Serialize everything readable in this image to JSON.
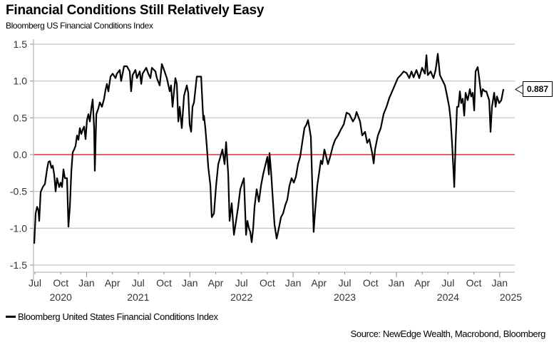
{
  "title": "Financial Conditions Still Relatively Easy",
  "subtitle": "Bloomberg US Financial Conditions Index",
  "legend": {
    "label": "Bloomberg United States Financial Conditions Index"
  },
  "source": "Source: NewEdge Wealth, Macrobond, Bloomberg",
  "last_value_label": "0.887",
  "colors": {
    "line": "#000000",
    "zero_line": "#e03030",
    "grid": "#c8c8c8",
    "axis": "#bbbbbb"
  },
  "chart_data": {
    "type": "line",
    "title": "Financial Conditions Still Relatively Easy",
    "subtitle": "Bloomberg US Financial Conditions Index",
    "xlabel": "",
    "ylabel": "",
    "ylim": [
      -1.6,
      1.55
    ],
    "yticks": [
      1.5,
      1.0,
      0.5,
      0.0,
      -0.5,
      -1.0,
      -1.5
    ],
    "ytick_labels": [
      "1.5",
      "1.0",
      "0.5",
      "0.0",
      "-0.5",
      "-1.0",
      "-1.5"
    ],
    "x_unit": "months since Jul 2020",
    "xlim": [
      0,
      55.5
    ],
    "xticks": [
      {
        "m": 0,
        "label": "Jul"
      },
      {
        "m": 3,
        "label": "Oct"
      },
      {
        "m": 6,
        "label": "Jan"
      },
      {
        "m": 9,
        "label": "Apr"
      },
      {
        "m": 12,
        "label": "Jul"
      },
      {
        "m": 15,
        "label": "Oct"
      },
      {
        "m": 18,
        "label": "Jan"
      },
      {
        "m": 21,
        "label": "Apr"
      },
      {
        "m": 24,
        "label": "Jul"
      },
      {
        "m": 27,
        "label": "Oct"
      },
      {
        "m": 30,
        "label": "Jan"
      },
      {
        "m": 33,
        "label": "Apr"
      },
      {
        "m": 36,
        "label": "Jul"
      },
      {
        "m": 39,
        "label": "Oct"
      },
      {
        "m": 42,
        "label": "Jan"
      },
      {
        "m": 45,
        "label": "Apr"
      },
      {
        "m": 48,
        "label": "Jul"
      },
      {
        "m": 51,
        "label": "Oct"
      },
      {
        "m": 54,
        "label": "Jan"
      }
    ],
    "year_labels": [
      {
        "m": 3,
        "label": "2020"
      },
      {
        "m": 12,
        "label": "2021"
      },
      {
        "m": 24,
        "label": "2022"
      },
      {
        "m": 36,
        "label": "2023"
      },
      {
        "m": 48,
        "label": "2024"
      },
      {
        "m": 55.3,
        "label": "2025"
      }
    ],
    "reference_line": {
      "y": 0.0,
      "label": "zero"
    },
    "grid": true,
    "legend_position": "bottom-left",
    "series": [
      {
        "name": "Bloomberg United States Financial Conditions Index",
        "last_value": 0.887,
        "points": [
          [
            -0.08,
            -1.21
          ],
          [
            0.08,
            -0.8
          ],
          [
            0.25,
            -0.71
          ],
          [
            0.41,
            -0.76
          ],
          [
            0.5,
            -0.9
          ],
          [
            0.66,
            -0.51
          ],
          [
            0.91,
            -0.44
          ],
          [
            1.16,
            -0.4
          ],
          [
            1.41,
            -0.2
          ],
          [
            1.57,
            -0.1
          ],
          [
            1.74,
            -0.09
          ],
          [
            1.91,
            -0.18
          ],
          [
            2.07,
            -0.15
          ],
          [
            2.24,
            -0.27
          ],
          [
            2.4,
            -0.5
          ],
          [
            2.57,
            -0.32
          ],
          [
            2.82,
            -0.44
          ],
          [
            2.98,
            -0.38
          ],
          [
            3.15,
            -0.44
          ],
          [
            3.31,
            -0.2
          ],
          [
            3.48,
            -0.32
          ],
          [
            3.73,
            -0.32
          ],
          [
            3.89,
            -0.98
          ],
          [
            4.06,
            -0.71
          ],
          [
            4.23,
            -0.22
          ],
          [
            4.39,
            0.03
          ],
          [
            4.56,
            0.07
          ],
          [
            4.72,
            0.12
          ],
          [
            4.89,
            0.26
          ],
          [
            5.05,
            0.2
          ],
          [
            5.22,
            0.36
          ],
          [
            5.39,
            0.28
          ],
          [
            5.55,
            0.34
          ],
          [
            5.72,
            0.38
          ],
          [
            5.88,
            0.21
          ],
          [
            6.05,
            0.47
          ],
          [
            6.21,
            0.55
          ],
          [
            6.38,
            0.45
          ],
          [
            6.55,
            0.63
          ],
          [
            6.71,
            0.75
          ],
          [
            6.88,
            0.36
          ],
          [
            6.96,
            -0.22
          ],
          [
            7.13,
            0.55
          ],
          [
            7.37,
            0.63
          ],
          [
            7.54,
            0.71
          ],
          [
            7.79,
            0.65
          ],
          [
            8.04,
            0.76
          ],
          [
            8.2,
            0.88
          ],
          [
            8.37,
            0.96
          ],
          [
            8.53,
            0.86
          ],
          [
            8.78,
            1.06
          ],
          [
            9.03,
            1.1
          ],
          [
            9.36,
            1.04
          ],
          [
            9.53,
            1.1
          ],
          [
            9.86,
            1.15
          ],
          [
            10.02,
            1.0
          ],
          [
            10.36,
            1.2
          ],
          [
            10.69,
            1.2
          ],
          [
            11.02,
            1.13
          ],
          [
            11.18,
            0.86
          ],
          [
            11.35,
            1.08
          ],
          [
            11.68,
            1.15
          ],
          [
            11.85,
            1.04
          ],
          [
            12.18,
            1.13
          ],
          [
            12.35,
            0.96
          ],
          [
            12.51,
            1.1
          ],
          [
            12.93,
            1.18
          ],
          [
            13.17,
            1.1
          ],
          [
            13.42,
            1.04
          ],
          [
            13.59,
            1.18
          ],
          [
            14.0,
            1.13
          ],
          [
            14.17,
            1.04
          ],
          [
            14.5,
            0.94
          ],
          [
            14.75,
            1.23
          ],
          [
            15.0,
            1.15
          ],
          [
            15.33,
            1.04
          ],
          [
            15.66,
            0.86
          ],
          [
            15.82,
            0.94
          ],
          [
            15.99,
            0.65
          ],
          [
            16.16,
            0.86
          ],
          [
            16.32,
            1.04
          ],
          [
            16.49,
            0.96
          ],
          [
            16.66,
            0.45
          ],
          [
            16.82,
            0.65
          ],
          [
            17.07,
            0.36
          ],
          [
            17.32,
            0.8
          ],
          [
            17.65,
            0.94
          ],
          [
            17.81,
            0.84
          ],
          [
            17.98,
            0.41
          ],
          [
            18.15,
            0.31
          ],
          [
            18.31,
            0.65
          ],
          [
            18.48,
            0.71
          ],
          [
            18.81,
            1.06
          ],
          [
            19.31,
            1.06
          ],
          [
            19.56,
            0.47
          ],
          [
            19.64,
            0.53
          ],
          [
            19.8,
            0.36
          ],
          [
            19.97,
            0.12
          ],
          [
            20.14,
            -0.17
          ],
          [
            20.39,
            -0.42
          ],
          [
            20.55,
            -0.85
          ],
          [
            20.8,
            -0.8
          ],
          [
            21.05,
            -0.42
          ],
          [
            21.3,
            -0.13
          ],
          [
            21.55,
            -0.03
          ],
          [
            21.79,
            0.07
          ],
          [
            22.04,
            -0.13
          ],
          [
            22.21,
            0.17
          ],
          [
            22.46,
            -0.27
          ],
          [
            22.62,
            -0.9
          ],
          [
            22.87,
            -0.66
          ],
          [
            23.12,
            -1.09
          ],
          [
            23.37,
            -0.9
          ],
          [
            23.61,
            -0.71
          ],
          [
            23.86,
            -0.47
          ],
          [
            24.11,
            -0.38
          ],
          [
            24.28,
            -0.32
          ],
          [
            24.53,
            -1.09
          ],
          [
            24.69,
            -0.9
          ],
          [
            24.86,
            -1.0
          ],
          [
            25.02,
            -1.05
          ],
          [
            25.19,
            -1.19
          ],
          [
            25.36,
            -1.0
          ],
          [
            25.52,
            -0.71
          ],
          [
            25.77,
            -0.47
          ],
          [
            26.02,
            -0.64
          ],
          [
            26.27,
            -0.42
          ],
          [
            26.51,
            -0.27
          ],
          [
            26.76,
            -0.15
          ],
          [
            27.01,
            -0.03
          ],
          [
            27.18,
            -0.27
          ],
          [
            27.26,
            0.02
          ],
          [
            27.43,
            -0.22
          ],
          [
            27.59,
            -0.51
          ],
          [
            27.84,
            -0.95
          ],
          [
            28.09,
            -1.14
          ],
          [
            28.34,
            -1.0
          ],
          [
            28.59,
            -0.85
          ],
          [
            28.83,
            -0.8
          ],
          [
            29.08,
            -0.69
          ],
          [
            29.33,
            -0.61
          ],
          [
            29.58,
            -0.42
          ],
          [
            29.83,
            -0.32
          ],
          [
            30.08,
            -0.38
          ],
          [
            30.32,
            -0.3
          ],
          [
            30.57,
            -0.13
          ],
          [
            30.82,
            -0.03
          ],
          [
            31.07,
            0.17
          ],
          [
            31.32,
            0.36
          ],
          [
            31.56,
            0.41
          ],
          [
            31.73,
            0.47
          ],
          [
            31.9,
            0.36
          ],
          [
            32.06,
            0.24
          ],
          [
            32.23,
            -0.42
          ],
          [
            32.39,
            -1.05
          ],
          [
            32.56,
            -0.76
          ],
          [
            32.81,
            -0.42
          ],
          [
            33.06,
            -0.22
          ],
          [
            33.22,
            -0.08
          ],
          [
            33.39,
            -0.13
          ],
          [
            33.64,
            0.07
          ],
          [
            33.89,
            -0.05
          ],
          [
            34.05,
            -0.13
          ],
          [
            34.3,
            -0.03
          ],
          [
            34.63,
            0.12
          ],
          [
            34.88,
            0.2
          ],
          [
            35.21,
            0.26
          ],
          [
            35.54,
            0.34
          ],
          [
            35.88,
            0.41
          ],
          [
            36.21,
            0.57
          ],
          [
            36.54,
            0.55
          ],
          [
            36.95,
            0.45
          ],
          [
            37.2,
            0.5
          ],
          [
            37.37,
            0.58
          ],
          [
            37.78,
            0.45
          ],
          [
            38.03,
            0.26
          ],
          [
            38.36,
            0.31
          ],
          [
            38.61,
            0.16
          ],
          [
            38.86,
            0.21
          ],
          [
            39.19,
            0.02
          ],
          [
            39.36,
            -0.12
          ],
          [
            39.52,
            0.07
          ],
          [
            39.85,
            0.26
          ],
          [
            40.18,
            0.36
          ],
          [
            40.51,
            0.55
          ],
          [
            40.85,
            0.65
          ],
          [
            41.18,
            0.77
          ],
          [
            41.51,
            0.86
          ],
          [
            41.84,
            0.95
          ],
          [
            42.17,
            1.04
          ],
          [
            42.5,
            1.08
          ],
          [
            42.84,
            1.13
          ],
          [
            43.17,
            1.11
          ],
          [
            43.5,
            1.04
          ],
          [
            43.75,
            1.13
          ],
          [
            44.0,
            1.05
          ],
          [
            44.33,
            1.15
          ],
          [
            44.66,
            1.04
          ],
          [
            44.99,
            1.18
          ],
          [
            45.32,
            1.1
          ],
          [
            45.49,
            1.35
          ],
          [
            45.65,
            1.08
          ],
          [
            45.98,
            1.13
          ],
          [
            46.31,
            1.04
          ],
          [
            46.56,
            1.15
          ],
          [
            46.81,
            1.37
          ],
          [
            47.06,
            1.08
          ],
          [
            47.31,
            1.02
          ],
          [
            47.64,
            0.94
          ],
          [
            47.89,
            0.8
          ],
          [
            48.14,
            0.65
          ],
          [
            48.3,
            0.47
          ],
          [
            48.47,
            0.16
          ],
          [
            48.63,
            -0.22
          ],
          [
            48.72,
            -0.44
          ],
          [
            48.88,
            0.16
          ],
          [
            49.05,
            0.65
          ],
          [
            49.21,
            0.65
          ],
          [
            49.38,
            0.86
          ],
          [
            49.54,
            0.7
          ],
          [
            49.71,
            0.76
          ],
          [
            49.88,
            0.53
          ],
          [
            50.04,
            0.84
          ],
          [
            50.29,
            0.74
          ],
          [
            50.54,
            0.89
          ],
          [
            50.7,
            0.79
          ],
          [
            50.87,
            0.84
          ],
          [
            51.04,
            0.6
          ],
          [
            51.2,
            1.13
          ],
          [
            51.45,
            1.19
          ],
          [
            51.62,
            1.04
          ],
          [
            51.87,
            0.79
          ],
          [
            52.03,
            0.89
          ],
          [
            52.28,
            0.86
          ],
          [
            52.45,
            0.86
          ],
          [
            52.78,
            0.74
          ],
          [
            52.94,
            0.31
          ],
          [
            53.11,
            0.65
          ],
          [
            53.36,
            0.84
          ],
          [
            53.53,
            0.65
          ],
          [
            53.69,
            0.79
          ],
          [
            53.94,
            0.7
          ],
          [
            54.19,
            0.74
          ],
          [
            54.44,
            0.89
          ]
        ]
      }
    ]
  }
}
